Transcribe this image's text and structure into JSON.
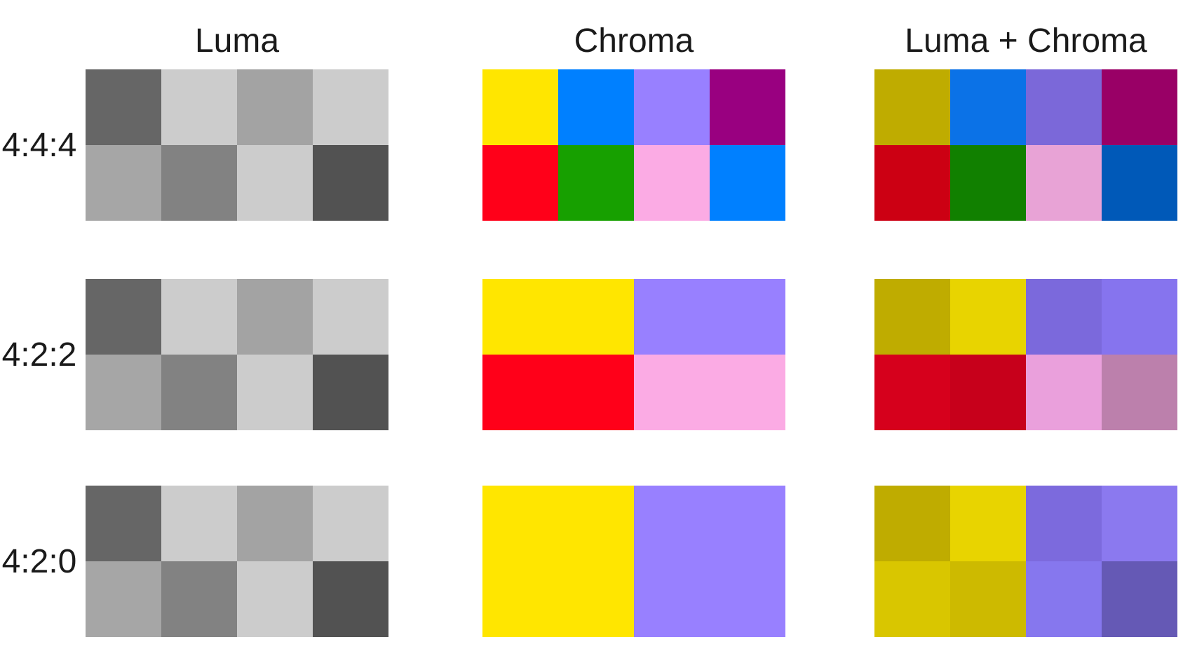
{
  "headers": {
    "luma": "Luma",
    "chroma": "Chroma",
    "combined": "Luma + Chroma"
  },
  "row_labels": [
    "4:4:4",
    "4:2:2",
    "4:2:0"
  ],
  "panels": {
    "r444": {
      "luma": {
        "cols": 4,
        "rows": 2,
        "cells": [
          {
            "colspan": 1,
            "rowspan": 1,
            "color": "#666666"
          },
          {
            "colspan": 1,
            "rowspan": 1,
            "color": "#CCCCCC"
          },
          {
            "colspan": 1,
            "rowspan": 1,
            "color": "#A3A3A3"
          },
          {
            "colspan": 1,
            "rowspan": 1,
            "color": "#CCCCCC"
          },
          {
            "colspan": 1,
            "rowspan": 1,
            "color": "#A6A6A6"
          },
          {
            "colspan": 1,
            "rowspan": 1,
            "color": "#828282"
          },
          {
            "colspan": 1,
            "rowspan": 1,
            "color": "#CCCCCC"
          },
          {
            "colspan": 1,
            "rowspan": 1,
            "color": "#525252"
          }
        ]
      },
      "chroma": {
        "cols": 4,
        "rows": 2,
        "cells": [
          {
            "colspan": 1,
            "rowspan": 1,
            "color": "#FFE600"
          },
          {
            "colspan": 1,
            "rowspan": 1,
            "color": "#0080FF"
          },
          {
            "colspan": 1,
            "rowspan": 1,
            "color": "#9880FF"
          },
          {
            "colspan": 1,
            "rowspan": 1,
            "color": "#990080"
          },
          {
            "colspan": 1,
            "rowspan": 1,
            "color": "#FF0019"
          },
          {
            "colspan": 1,
            "rowspan": 1,
            "color": "#17A000"
          },
          {
            "colspan": 1,
            "rowspan": 1,
            "color": "#FBABE4"
          },
          {
            "colspan": 1,
            "rowspan": 1,
            "color": "#0080FF"
          }
        ]
      },
      "combined": {
        "cols": 4,
        "rows": 2,
        "cells": [
          {
            "colspan": 1,
            "rowspan": 1,
            "color": "#BFAC00"
          },
          {
            "colspan": 1,
            "rowspan": 1,
            "color": "#0B72E7"
          },
          {
            "colspan": 1,
            "rowspan": 1,
            "color": "#7B68D9"
          },
          {
            "colspan": 1,
            "rowspan": 1,
            "color": "#990066"
          },
          {
            "colspan": 1,
            "rowspan": 1,
            "color": "#CC0013"
          },
          {
            "colspan": 1,
            "rowspan": 1,
            "color": "#118000"
          },
          {
            "colspan": 1,
            "rowspan": 1,
            "color": "#E8A3D6"
          },
          {
            "colspan": 1,
            "rowspan": 1,
            "color": "#0059B8"
          }
        ]
      }
    },
    "r422": {
      "luma": {
        "cols": 4,
        "rows": 2,
        "cells": [
          {
            "colspan": 1,
            "rowspan": 1,
            "color": "#666666"
          },
          {
            "colspan": 1,
            "rowspan": 1,
            "color": "#CCCCCC"
          },
          {
            "colspan": 1,
            "rowspan": 1,
            "color": "#A3A3A3"
          },
          {
            "colspan": 1,
            "rowspan": 1,
            "color": "#CCCCCC"
          },
          {
            "colspan": 1,
            "rowspan": 1,
            "color": "#A6A6A6"
          },
          {
            "colspan": 1,
            "rowspan": 1,
            "color": "#828282"
          },
          {
            "colspan": 1,
            "rowspan": 1,
            "color": "#CCCCCC"
          },
          {
            "colspan": 1,
            "rowspan": 1,
            "color": "#525252"
          }
        ]
      },
      "chroma": {
        "cols": 4,
        "rows": 2,
        "cells": [
          {
            "colspan": 2,
            "rowspan": 1,
            "color": "#FFE600"
          },
          {
            "colspan": 2,
            "rowspan": 1,
            "color": "#9880FF"
          },
          {
            "colspan": 2,
            "rowspan": 1,
            "color": "#FF0019"
          },
          {
            "colspan": 2,
            "rowspan": 1,
            "color": "#FBABE4"
          }
        ]
      },
      "combined": {
        "cols": 4,
        "rows": 2,
        "cells": [
          {
            "colspan": 1,
            "rowspan": 1,
            "color": "#BFAC00"
          },
          {
            "colspan": 1,
            "rowspan": 1,
            "color": "#E8D400"
          },
          {
            "colspan": 1,
            "rowspan": 1,
            "color": "#7B69DC"
          },
          {
            "colspan": 1,
            "rowspan": 1,
            "color": "#8674EE"
          },
          {
            "colspan": 1,
            "rowspan": 1,
            "color": "#D6001C"
          },
          {
            "colspan": 1,
            "rowspan": 1,
            "color": "#C7001B"
          },
          {
            "colspan": 1,
            "rowspan": 1,
            "color": "#EAA0DC"
          },
          {
            "colspan": 1,
            "rowspan": 1,
            "color": "#BC80AC"
          }
        ]
      }
    },
    "r420": {
      "luma": {
        "cols": 4,
        "rows": 2,
        "cells": [
          {
            "colspan": 1,
            "rowspan": 1,
            "color": "#666666"
          },
          {
            "colspan": 1,
            "rowspan": 1,
            "color": "#CCCCCC"
          },
          {
            "colspan": 1,
            "rowspan": 1,
            "color": "#A3A3A3"
          },
          {
            "colspan": 1,
            "rowspan": 1,
            "color": "#CCCCCC"
          },
          {
            "colspan": 1,
            "rowspan": 1,
            "color": "#A6A6A6"
          },
          {
            "colspan": 1,
            "rowspan": 1,
            "color": "#828282"
          },
          {
            "colspan": 1,
            "rowspan": 1,
            "color": "#CCCCCC"
          },
          {
            "colspan": 1,
            "rowspan": 1,
            "color": "#525252"
          }
        ]
      },
      "chroma": {
        "cols": 4,
        "rows": 2,
        "cells": [
          {
            "colspan": 2,
            "rowspan": 2,
            "color": "#FFE600"
          },
          {
            "colspan": 2,
            "rowspan": 2,
            "color": "#9880FF"
          }
        ]
      },
      "combined": {
        "cols": 4,
        "rows": 2,
        "cells": [
          {
            "colspan": 1,
            "rowspan": 1,
            "color": "#BFAC00"
          },
          {
            "colspan": 1,
            "rowspan": 1,
            "color": "#E8D400"
          },
          {
            "colspan": 1,
            "rowspan": 1,
            "color": "#7C6ADD"
          },
          {
            "colspan": 1,
            "rowspan": 1,
            "color": "#8B79EF"
          },
          {
            "colspan": 1,
            "rowspan": 1,
            "color": "#D9C600"
          },
          {
            "colspan": 1,
            "rowspan": 1,
            "color": "#CDBA00"
          },
          {
            "colspan": 1,
            "rowspan": 1,
            "color": "#8677EE"
          },
          {
            "colspan": 1,
            "rowspan": 1,
            "color": "#6559B5"
          }
        ]
      }
    }
  }
}
